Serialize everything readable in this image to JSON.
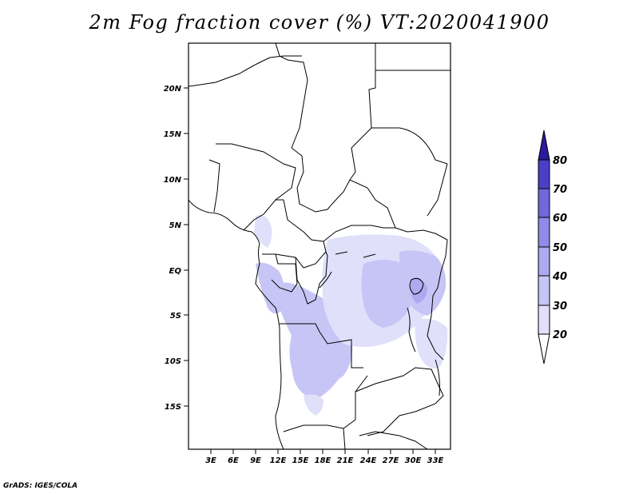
{
  "title": "2m Fog fraction cover (%) VT:2020041900",
  "credit": "GrADS: IGES/COLA",
  "map": {
    "lat_labels": [
      "20N",
      "15N",
      "10N",
      "5N",
      "EQ",
      "5S",
      "10S",
      "15S"
    ],
    "lon_labels": [
      "3E",
      "6E",
      "9E",
      "12E",
      "15E",
      "18E",
      "21E",
      "24E",
      "27E",
      "30E",
      "33E"
    ]
  },
  "colorbar": {
    "levels": [
      "20",
      "30",
      "40",
      "50",
      "60",
      "70",
      "80"
    ],
    "colors": [
      "#ffffff",
      "#e0e0fb",
      "#c7c5f6",
      "#aea9f0",
      "#918ae8",
      "#7068dc",
      "#4a40c8",
      "#2a1aa0"
    ]
  }
}
